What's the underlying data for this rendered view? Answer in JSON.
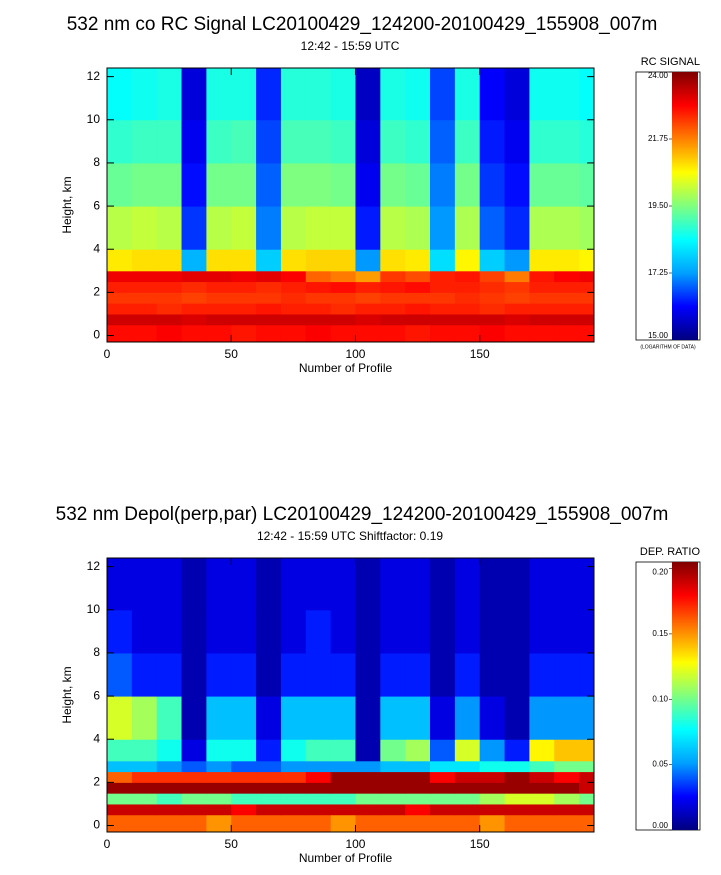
{
  "chart_data": [
    {
      "type": "heatmap",
      "title": "532 nm co RC Signal LC20100429_124200-20100429_155908_007m",
      "subtitle": "12:42 - 15:59 UTC",
      "xlabel": "Number of Profile",
      "ylabel": "Height, km",
      "colorbar_label": "RC SIGNAL",
      "colorbar_note": "(LOGARITHM OF DATA)",
      "xlim": [
        0,
        196
      ],
      "ylim": [
        -0.3,
        12.4
      ],
      "xticks": [
        0,
        50,
        100,
        150
      ],
      "yticks": [
        0,
        2,
        4,
        6,
        8,
        10,
        12
      ],
      "xbins": [
        0,
        10,
        20,
        30,
        40,
        50,
        60,
        70,
        80,
        90,
        100,
        110,
        120,
        130,
        140,
        150,
        160,
        170,
        180,
        190,
        196
      ],
      "ybins": [
        -0.3,
        0.5,
        1,
        1.5,
        2,
        2.5,
        3,
        4,
        6,
        8,
        10,
        12.4
      ],
      "zlim": [
        15,
        24
      ],
      "zticks": [
        {
          "value": 15,
          "label": "15.00"
        },
        {
          "value": 17.25,
          "label": "17.25"
        },
        {
          "value": 19.5,
          "label": "19.50"
        },
        {
          "value": 21.75,
          "label": "21.75"
        },
        {
          "value": 24,
          "label": "24.00"
        }
      ],
      "colormap": [
        "#00007f",
        "#0000ff",
        "#00a0ff",
        "#00ffff",
        "#7fff7f",
        "#ffff00",
        "#ff8000",
        "#ff0000",
        "#7f0000"
      ],
      "z": [
        [
          22.8,
          22.8,
          22.9,
          22.8,
          22.8,
          22.7,
          22.8,
          22.8,
          22.9,
          22.8,
          22.8,
          22.8,
          22.7,
          22.8,
          22.8,
          22.9,
          22.8,
          22.8,
          22.8,
          22.8
        ],
        [
          23.3,
          23.3,
          23.3,
          23.2,
          23.3,
          23.3,
          23.3,
          23.3,
          23.3,
          23.3,
          23.2,
          23.3,
          23.3,
          23.3,
          23.3,
          23.3,
          23.2,
          23.3,
          23.3,
          23.3
        ],
        [
          22.6,
          22.6,
          22.5,
          22.6,
          22.6,
          22.6,
          22.7,
          22.6,
          22.6,
          22.5,
          22.6,
          22.6,
          22.7,
          22.6,
          22.6,
          22.5,
          22.6,
          22.6,
          22.6,
          22.6
        ],
        [
          22.4,
          22.4,
          22.4,
          22.3,
          22.4,
          22.4,
          22.4,
          22.5,
          22.4,
          22.4,
          22.3,
          22.4,
          22.4,
          22.4,
          22.5,
          22.4,
          22.3,
          22.4,
          22.4,
          22.4
        ],
        [
          22.6,
          22.6,
          22.6,
          22.5,
          22.6,
          22.6,
          22.5,
          22.6,
          22.7,
          22.8,
          22.6,
          22.7,
          22.8,
          22.6,
          22.6,
          22.5,
          22.4,
          22.6,
          22.6,
          22.6
        ],
        [
          23.0,
          23.0,
          23.0,
          23.1,
          23.1,
          23.0,
          23.1,
          22.9,
          22.0,
          21.8,
          21.5,
          22.4,
          22.2,
          22.6,
          22.7,
          22.3,
          21.8,
          22.7,
          22.9,
          23.0
        ],
        [
          20.8,
          20.9,
          20.9,
          17.5,
          20.9,
          20.9,
          17.8,
          20.9,
          21.0,
          21.0,
          17.2,
          20.9,
          20.8,
          18.0,
          20.7,
          17.8,
          17.2,
          20.8,
          20.8,
          20.7
        ],
        [
          20.0,
          20.1,
          20.0,
          16.5,
          20.0,
          20.1,
          17.0,
          20.0,
          20.1,
          20.1,
          16.3,
          20.0,
          19.9,
          17.2,
          19.9,
          16.8,
          16.4,
          19.9,
          19.9,
          19.8
        ],
        [
          19.3,
          19.4,
          19.4,
          16.2,
          19.4,
          19.4,
          16.8,
          19.5,
          19.5,
          19.4,
          16.0,
          19.4,
          19.3,
          17.0,
          19.4,
          16.5,
          16.2,
          19.3,
          19.3,
          19.2
        ],
        [
          18.8,
          18.9,
          18.9,
          16.0,
          18.9,
          19.0,
          16.6,
          19.0,
          19.0,
          18.9,
          15.8,
          18.9,
          18.8,
          16.8,
          18.9,
          16.3,
          16.0,
          18.8,
          18.8,
          18.7
        ],
        [
          18.4,
          18.5,
          18.6,
          15.8,
          18.6,
          18.6,
          16.4,
          18.7,
          18.7,
          18.6,
          15.6,
          18.6,
          18.5,
          16.6,
          18.6,
          16.1,
          15.8,
          18.5,
          18.5,
          18.4
        ]
      ]
    },
    {
      "type": "heatmap",
      "title": "532 nm Depol(perp,par) LC20100429_124200-20100429_155908_007m",
      "subtitle": "12:42 - 15:59 UTC Shiftfactor: 0.19",
      "xlabel": "Number of Profile",
      "ylabel": "Height, km",
      "colorbar_label": "DEP. RATIO",
      "xlim": [
        0,
        196
      ],
      "ylim": [
        -0.3,
        12.4
      ],
      "xticks": [
        0,
        50,
        100,
        150
      ],
      "yticks": [
        0,
        2,
        4,
        6,
        8,
        10,
        12
      ],
      "xbins": [
        0,
        10,
        20,
        30,
        40,
        50,
        60,
        70,
        80,
        90,
        100,
        110,
        120,
        130,
        140,
        150,
        160,
        170,
        180,
        190,
        196
      ],
      "ybins": [
        -0.3,
        0.5,
        1,
        1.5,
        2,
        2.5,
        3,
        4,
        6,
        8,
        10,
        12.4
      ],
      "zlim": [
        0,
        0.205
      ],
      "zticks": [
        {
          "value": 0,
          "label": "0.00"
        },
        {
          "value": 0.05,
          "label": "0.05"
        },
        {
          "value": 0.1,
          "label": "0.10"
        },
        {
          "value": 0.15,
          "label": "0.15"
        },
        {
          "value": 0.2,
          "label": "0.20"
        }
      ],
      "colormap": [
        "#00007f",
        "#0000ff",
        "#00a0ff",
        "#00ffff",
        "#7fff7f",
        "#ffff00",
        "#ff8000",
        "#ff0000",
        "#7f0000"
      ],
      "z": [
        [
          0.16,
          0.16,
          0.16,
          0.16,
          0.15,
          0.16,
          0.16,
          0.16,
          0.16,
          0.15,
          0.16,
          0.16,
          0.16,
          0.16,
          0.16,
          0.15,
          0.16,
          0.16,
          0.16,
          0.16
        ],
        [
          0.19,
          0.19,
          0.19,
          0.19,
          0.19,
          0.18,
          0.19,
          0.19,
          0.19,
          0.19,
          0.19,
          0.19,
          0.18,
          0.19,
          0.19,
          0.19,
          0.19,
          0.19,
          0.19,
          0.19
        ],
        [
          0.1,
          0.1,
          0.09,
          0.1,
          0.1,
          0.09,
          0.09,
          0.09,
          0.09,
          0.09,
          0.1,
          0.1,
          0.1,
          0.1,
          0.1,
          0.11,
          0.12,
          0.12,
          0.11,
          0.1
        ],
        [
          0.2,
          0.2,
          0.2,
          0.2,
          0.2,
          0.2,
          0.2,
          0.2,
          0.2,
          0.2,
          0.2,
          0.2,
          0.2,
          0.2,
          0.2,
          0.2,
          0.2,
          0.2,
          0.2,
          0.19
        ],
        [
          0.16,
          0.17,
          0.17,
          0.17,
          0.17,
          0.17,
          0.17,
          0.17,
          0.18,
          0.2,
          0.2,
          0.2,
          0.2,
          0.18,
          0.19,
          0.19,
          0.2,
          0.19,
          0.18,
          0.19
        ],
        [
          0.06,
          0.06,
          0.05,
          0.04,
          0.05,
          0.04,
          0.04,
          0.05,
          0.05,
          0.05,
          0.05,
          0.06,
          0.06,
          0.07,
          0.07,
          0.08,
          0.08,
          0.09,
          0.1,
          0.1
        ],
        [
          0.09,
          0.09,
          0.08,
          0.02,
          0.08,
          0.08,
          0.03,
          0.08,
          0.09,
          0.09,
          0.01,
          0.1,
          0.11,
          0.04,
          0.12,
          0.05,
          0.03,
          0.13,
          0.14,
          0.14
        ],
        [
          0.12,
          0.11,
          0.09,
          0.01,
          0.06,
          0.06,
          0.02,
          0.06,
          0.06,
          0.06,
          0.01,
          0.06,
          0.06,
          0.02,
          0.05,
          0.02,
          0.01,
          0.05,
          0.05,
          0.05
        ],
        [
          0.04,
          0.03,
          0.03,
          0.01,
          0.03,
          0.03,
          0.01,
          0.03,
          0.03,
          0.03,
          0.01,
          0.03,
          0.03,
          0.01,
          0.03,
          0.01,
          0.01,
          0.03,
          0.03,
          0.03
        ],
        [
          0.03,
          0.02,
          0.02,
          0.01,
          0.02,
          0.02,
          0.01,
          0.02,
          0.03,
          0.02,
          0.01,
          0.02,
          0.02,
          0.01,
          0.02,
          0.01,
          0.01,
          0.02,
          0.02,
          0.02
        ],
        [
          0.02,
          0.02,
          0.02,
          0.01,
          0.02,
          0.02,
          0.01,
          0.02,
          0.02,
          0.02,
          0.01,
          0.02,
          0.02,
          0.01,
          0.02,
          0.01,
          0.01,
          0.02,
          0.02,
          0.02
        ]
      ]
    }
  ]
}
